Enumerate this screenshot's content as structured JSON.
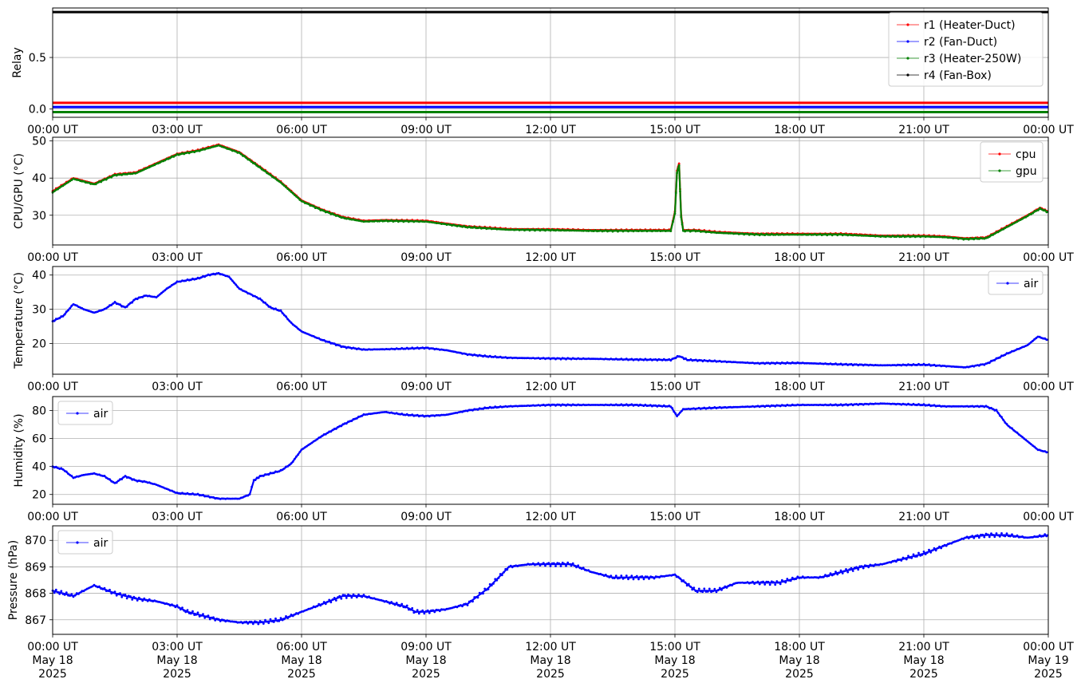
{
  "chart_data": [
    {
      "type": "line",
      "ylabel": "Relay",
      "xlim": [
        "00:00 UT",
        "00:00 UT"
      ],
      "ylim": [
        -0.08,
        0.98
      ],
      "yticks": [
        "0.0",
        "0.5"
      ],
      "ytick_values": [
        0.0,
        0.5
      ],
      "xticks": [
        "00:00 UT",
        "03:00 UT",
        "06:00 UT",
        "09:00 UT",
        "12:00 UT",
        "15:00 UT",
        "18:00 UT",
        "21:00 UT",
        "00:00 UT"
      ],
      "grid": true,
      "legend_position": "top-right",
      "series": [
        {
          "name": "r1 (Heater-Duct)",
          "color": "#ff0000",
          "x": [
            0,
            24
          ],
          "y": [
            0.06,
            0.06
          ]
        },
        {
          "name": "r2 (Fan-Duct)",
          "color": "#0000ff",
          "x": [
            0,
            24
          ],
          "y": [
            0.02,
            0.02
          ]
        },
        {
          "name": "r3 (Heater-250W)",
          "color": "#008000",
          "x": [
            0,
            24
          ],
          "y": [
            -0.03,
            -0.03
          ]
        },
        {
          "name": "r4 (Fan-Box)",
          "color": "#000000",
          "x": [
            0,
            24
          ],
          "y": [
            0.94,
            0.94
          ]
        }
      ]
    },
    {
      "type": "line",
      "ylabel": "CPU/GPU (°C)",
      "xlim": [
        "00:00 UT",
        "00:00 UT"
      ],
      "ylim": [
        22,
        51
      ],
      "yticks": [
        "30",
        "40",
        "50"
      ],
      "ytick_values": [
        30,
        40,
        50
      ],
      "xticks": [
        "00:00 UT",
        "03:00 UT",
        "06:00 UT",
        "09:00 UT",
        "12:00 UT",
        "15:00 UT",
        "18:00 UT",
        "21:00 UT",
        "00:00 UT"
      ],
      "grid": true,
      "legend_position": "top-right",
      "series": [
        {
          "name": "cpu",
          "color": "#ff0000",
          "x": [
            0,
            0.5,
            1.0,
            1.5,
            2.0,
            2.5,
            3.0,
            3.5,
            4.0,
            4.5,
            5.0,
            5.5,
            6.0,
            6.5,
            7.0,
            7.5,
            8.0,
            9.0,
            10.0,
            11.0,
            12.0,
            13.0,
            14.0,
            14.9,
            15.0,
            15.05,
            15.1,
            15.15,
            15.2,
            15.5,
            16.0,
            17.0,
            18.0,
            19.0,
            20.0,
            21.0,
            21.5,
            22.0,
            22.5,
            23.0,
            23.5,
            23.8,
            24.0
          ],
          "y": [
            36.5,
            40,
            38.5,
            41,
            41.5,
            44,
            46.5,
            47.5,
            49,
            47,
            43,
            39,
            34,
            31.5,
            29.5,
            28.5,
            28.7,
            28.5,
            27,
            26.3,
            26.2,
            26,
            26,
            26,
            31,
            42,
            44,
            30,
            26,
            26,
            25.5,
            25,
            25,
            25,
            24.5,
            24.5,
            24.3,
            23.8,
            24,
            27,
            30,
            32,
            31
          ]
        },
        {
          "name": "gpu",
          "color": "#008000",
          "x": [
            0,
            0.5,
            1.0,
            1.5,
            2.0,
            2.5,
            3.0,
            3.5,
            4.0,
            4.5,
            5.0,
            5.5,
            6.0,
            6.5,
            7.0,
            7.5,
            8.0,
            9.0,
            10.0,
            11.0,
            12.0,
            13.0,
            14.0,
            14.9,
            15.0,
            15.05,
            15.1,
            15.15,
            15.2,
            15.5,
            16.0,
            17.0,
            18.0,
            19.0,
            20.0,
            21.0,
            21.5,
            22.0,
            22.5,
            23.0,
            23.5,
            23.8,
            24.0
          ],
          "y": [
            36.2,
            39.8,
            38.3,
            40.8,
            41.3,
            43.8,
            46.3,
            47.3,
            48.8,
            46.8,
            42.8,
            38.8,
            33.8,
            31.3,
            29.3,
            28.3,
            28.5,
            28.3,
            26.8,
            26.1,
            26,
            25.8,
            25.8,
            25.8,
            30.5,
            41.5,
            43.5,
            29.5,
            25.8,
            25.8,
            25.3,
            24.8,
            24.8,
            24.8,
            24.3,
            24.3,
            24.1,
            23.6,
            23.8,
            26.8,
            29.8,
            31.8,
            30.8
          ]
        }
      ]
    },
    {
      "type": "line",
      "ylabel": "Temperature (°C)",
      "xlim": [
        "00:00 UT",
        "00:00 UT"
      ],
      "ylim": [
        11,
        42.5
      ],
      "yticks": [
        "20",
        "30",
        "40"
      ],
      "ytick_values": [
        20,
        30,
        40
      ],
      "xticks": [
        "00:00 UT",
        "03:00 UT",
        "06:00 UT",
        "09:00 UT",
        "12:00 UT",
        "15:00 UT",
        "18:00 UT",
        "21:00 UT",
        "00:00 UT"
      ],
      "grid": true,
      "legend_position": "top-right",
      "series": [
        {
          "name": "air",
          "color": "#0000ff",
          "x": [
            0,
            0.25,
            0.5,
            0.75,
            1.0,
            1.25,
            1.5,
            1.75,
            2.0,
            2.25,
            2.5,
            2.75,
            3.0,
            3.25,
            3.5,
            3.75,
            4.0,
            4.25,
            4.5,
            4.75,
            5.0,
            5.25,
            5.5,
            5.75,
            6.0,
            6.5,
            7.0,
            7.5,
            8.0,
            8.5,
            9.0,
            9.5,
            10.0,
            10.5,
            11.0,
            12.0,
            13.0,
            14.0,
            14.9,
            15.1,
            15.3,
            16.0,
            17.0,
            18.0,
            19.0,
            20.0,
            21.0,
            21.5,
            22.0,
            22.5,
            23.0,
            23.5,
            23.75,
            24.0
          ],
          "y": [
            26.5,
            28,
            31.5,
            30,
            29,
            30,
            32,
            30.5,
            33,
            34,
            33.5,
            36,
            38,
            38.5,
            39,
            40,
            40.5,
            39.5,
            36,
            34.5,
            33,
            30.5,
            29.5,
            26,
            23.5,
            21,
            19,
            18.2,
            18.3,
            18.5,
            18.7,
            18,
            16.8,
            16.2,
            15.8,
            15.6,
            15.5,
            15.3,
            15.2,
            16.3,
            15.2,
            14.8,
            14.2,
            14.3,
            13.9,
            13.6,
            13.8,
            13.4,
            13,
            14,
            17,
            19.5,
            22,
            21
          ]
        }
      ]
    },
    {
      "type": "line",
      "ylabel": "Humidity (%)",
      "xlim": [
        "00:00 UT",
        "00:00 UT"
      ],
      "ylim": [
        13,
        90
      ],
      "yticks": [
        "20",
        "40",
        "60",
        "80"
      ],
      "ytick_values": [
        20,
        40,
        60,
        80
      ],
      "xticks": [
        "00:00 UT",
        "03:00 UT",
        "06:00 UT",
        "09:00 UT",
        "12:00 UT",
        "15:00 UT",
        "18:00 UT",
        "21:00 UT",
        "00:00 UT"
      ],
      "grid": true,
      "legend_position": "top-left",
      "series": [
        {
          "name": "air",
          "color": "#0000ff",
          "x": [
            0,
            0.25,
            0.5,
            0.75,
            1.0,
            1.25,
            1.5,
            1.75,
            2.0,
            2.25,
            2.5,
            3.0,
            3.5,
            4.0,
            4.5,
            4.75,
            4.85,
            5.0,
            5.5,
            5.75,
            6.0,
            6.5,
            7.0,
            7.5,
            8.0,
            8.5,
            9.0,
            9.5,
            10.0,
            10.5,
            11.0,
            12.0,
            13.0,
            14.0,
            14.9,
            15.05,
            15.2,
            16.0,
            17.0,
            18.0,
            19.0,
            20.0,
            21.0,
            21.5,
            22.0,
            22.5,
            22.75,
            23.0,
            23.5,
            23.75,
            24.0
          ],
          "y": [
            40,
            38,
            32,
            34,
            35,
            33,
            28,
            33,
            30,
            29,
            27,
            21,
            20,
            17,
            17,
            20,
            30,
            33,
            37,
            42,
            52,
            62,
            70,
            77,
            79,
            77,
            76,
            77,
            80,
            82,
            83,
            84,
            84,
            84,
            83,
            76,
            81,
            82,
            83,
            84,
            84,
            85,
            84,
            83,
            83,
            83,
            80,
            70,
            58,
            52,
            50
          ]
        }
      ]
    },
    {
      "type": "scatter",
      "ylabel": "Pressure (hPa)",
      "xlim": [
        "00:00 UT",
        "00:00 UT"
      ],
      "ylim": [
        866.45,
        870.55
      ],
      "yticks": [
        "867",
        "868",
        "869",
        "870"
      ],
      "ytick_values": [
        867,
        868,
        869,
        870
      ],
      "xticks": [
        "00:00 UT",
        "03:00 UT",
        "06:00 UT",
        "09:00 UT",
        "12:00 UT",
        "15:00 UT",
        "18:00 UT",
        "21:00 UT",
        "00:00 UT"
      ],
      "xticks_line2": [
        "May 18",
        "May 18",
        "May 18",
        "May 18",
        "May 18",
        "May 18",
        "May 18",
        "May 18",
        "May 19"
      ],
      "xticks_line3": [
        "2025",
        "2025",
        "2025",
        "2025",
        "2025",
        "2025",
        "2025",
        "2025",
        "2025"
      ],
      "grid": true,
      "legend_position": "top-left",
      "series": [
        {
          "name": "air",
          "color": "#0000ff",
          "x": [
            0,
            0.5,
            0.75,
            1.0,
            1.5,
            2.0,
            2.5,
            3.0,
            3.25,
            3.5,
            4.0,
            4.5,
            5.0,
            5.5,
            6.0,
            6.5,
            7.0,
            7.5,
            8.0,
            8.5,
            8.75,
            9.0,
            9.5,
            10.0,
            10.5,
            11.0,
            11.5,
            12.0,
            12.5,
            13.0,
            13.5,
            14.0,
            14.5,
            15.0,
            15.5,
            16.0,
            16.5,
            17.0,
            17.5,
            18.0,
            18.5,
            19.0,
            19.5,
            20.0,
            20.5,
            21.0,
            21.5,
            22.0,
            22.5,
            23.0,
            23.5,
            24.0
          ],
          "y": [
            868.1,
            867.9,
            868.1,
            868.3,
            868.0,
            867.8,
            867.7,
            867.5,
            867.3,
            867.2,
            867.0,
            866.9,
            866.9,
            867.0,
            867.3,
            867.6,
            867.9,
            867.9,
            867.7,
            867.5,
            867.3,
            867.3,
            867.4,
            867.6,
            868.2,
            869.0,
            869.1,
            869.1,
            869.1,
            868.8,
            868.6,
            868.6,
            868.6,
            868.7,
            868.1,
            868.1,
            868.4,
            868.4,
            868.4,
            868.6,
            868.6,
            868.8,
            869.0,
            869.1,
            869.3,
            869.5,
            869.8,
            870.1,
            870.2,
            870.2,
            870.1,
            870.2
          ]
        }
      ]
    }
  ]
}
